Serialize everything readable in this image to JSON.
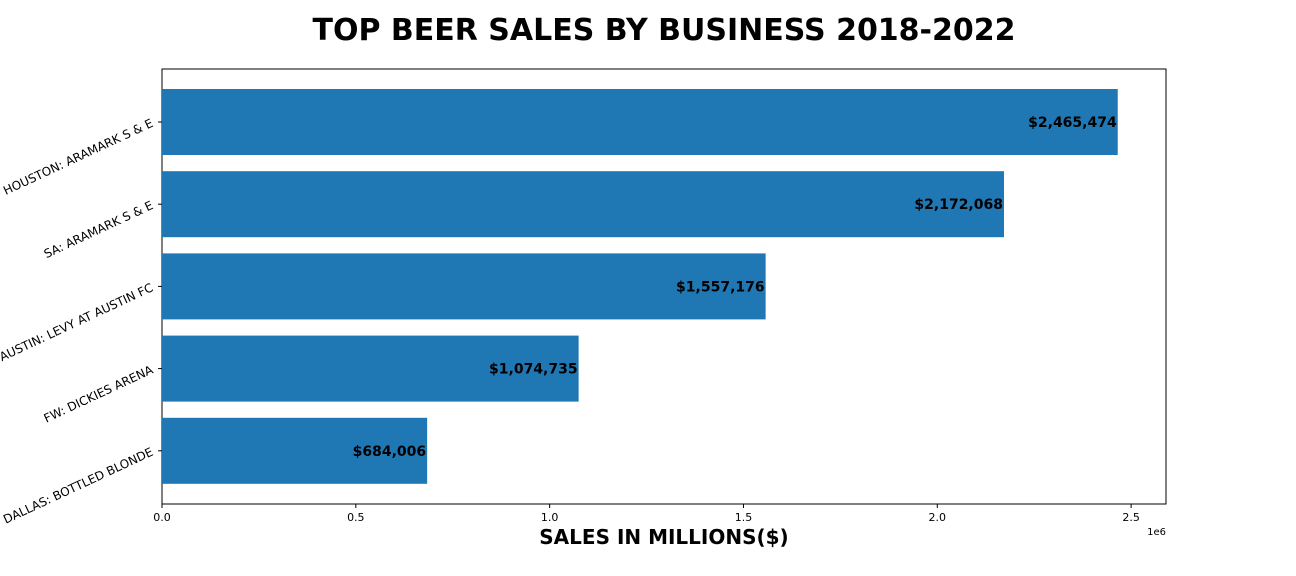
{
  "chart_data": {
    "type": "bar",
    "orientation": "horizontal",
    "title": "TOP BEER SALES BY BUSINESS 2018-2022",
    "xlabel": "SALES IN MILLIONS($)",
    "ylabel": "",
    "categories": [
      "HOUSTON: ARAMARK S & E",
      "SA: ARAMARK S & E",
      "AUSTIN: LEVY AT AUSTIN FC",
      "FW: DICKIES ARENA",
      "DALLAS: BOTTLED BLONDE"
    ],
    "values": [
      2465474,
      2172068,
      1557176,
      1074735,
      684006
    ],
    "data_labels": [
      "$2,465,474",
      "$2,172,068",
      "$1,557,176",
      "$1,074,735",
      "$684,006"
    ],
    "xlim": [
      0,
      2590000
    ],
    "xticks": [
      0,
      500000,
      1000000,
      1500000,
      2000000,
      2500000
    ],
    "xtick_labels": [
      "0.0",
      "0.5",
      "1.0",
      "1.5",
      "2.0",
      "2.5"
    ],
    "x_offset_label": "1e6",
    "bar_color": "#1f77b4",
    "grid": false
  }
}
